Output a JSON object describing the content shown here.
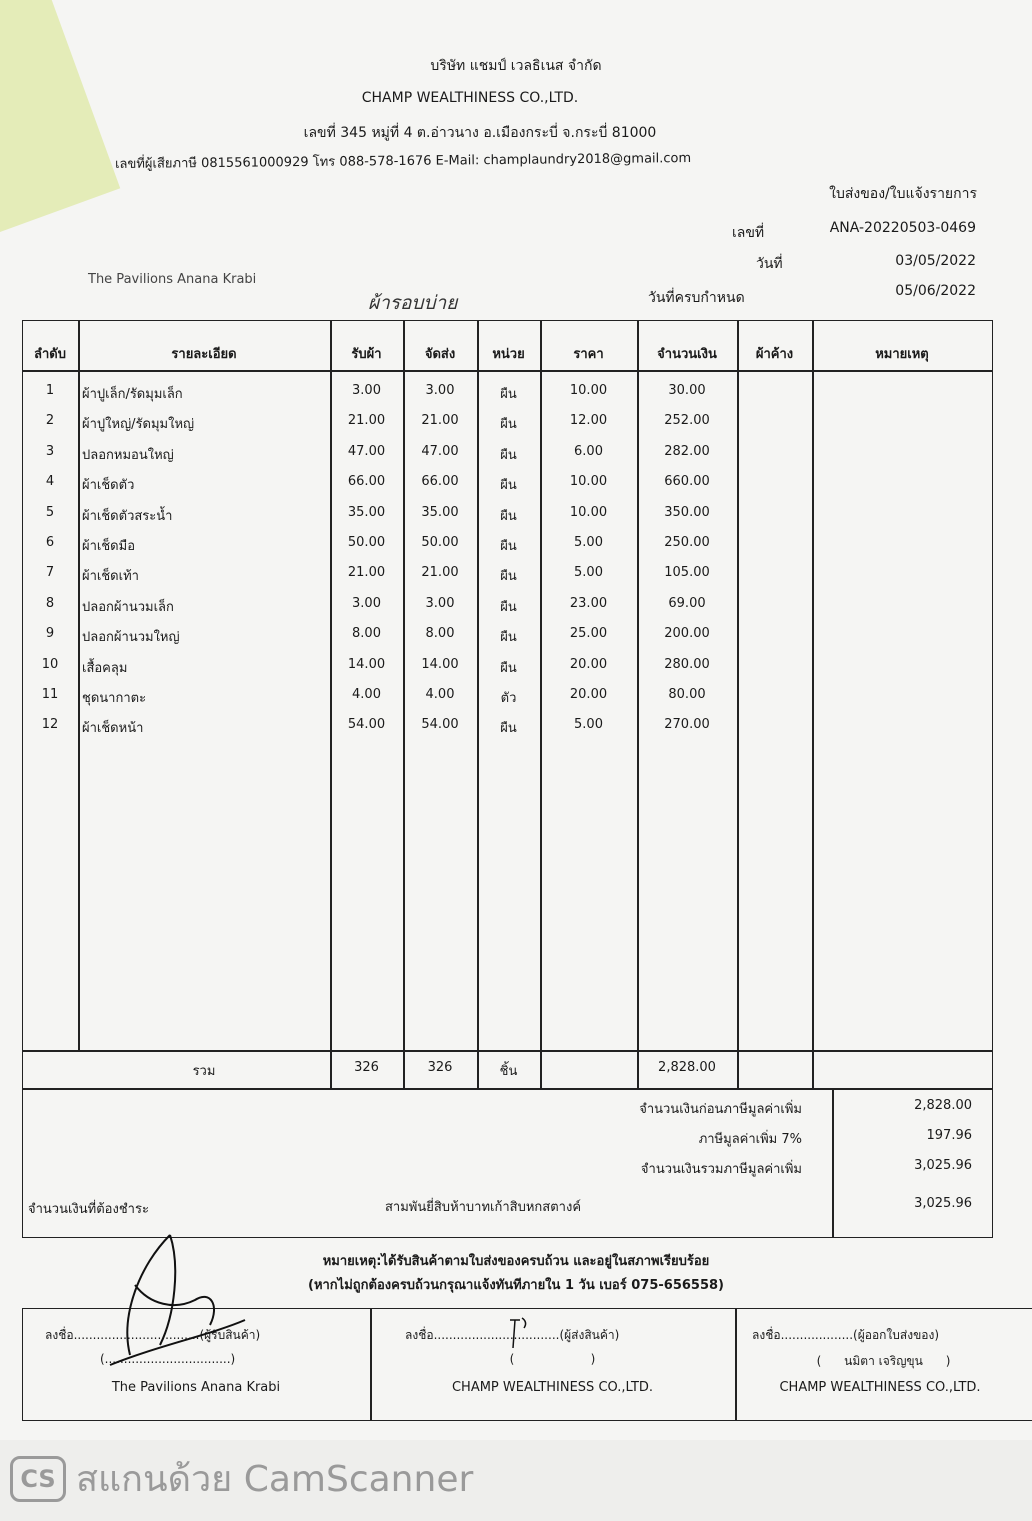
{
  "company": {
    "name_th": "บริษัท แชมป์ เวลธิเนส จำกัด",
    "name_en": "CHAMP WEALTHINESS CO.,LTD.",
    "address": "เลขที่ 345 หมู่ที่ 4 ต.อ่าวนาง อ.เมืองกระบี่ จ.กระบี่ 81000",
    "contact": "เลขที่ผู้เสียภาษี 0815561000929 โทร 088-578-1676 E-Mail: champlaundry2018@gmail.com"
  },
  "doc": {
    "type": "ใบส่งของ/ใบแจ้งรายการ",
    "no_label": "เลขที่",
    "no": "ANA-20220503-0469",
    "date_label": "วันที่",
    "date": "03/05/2022",
    "due_label": "วันที่ครบกำหนด",
    "due": "05/06/2022",
    "customer": "The Pavilions Anana Krabi",
    "handwritten": "ผ้ารอบบ่าย"
  },
  "table": {
    "headers": [
      "ลำดับ",
      "รายละเอียด",
      "รับผ้า",
      "จัดส่ง",
      "หน่วย",
      "ราคา",
      "จำนวนเงิน",
      "ผ้าค้าง",
      "หมายเหตุ"
    ],
    "rows": [
      [
        "1",
        "ผ้าปูเล็ก/รัดมุมเล็ก",
        "3.00",
        "3.00",
        "ผืน",
        "10.00",
        "30.00"
      ],
      [
        "2",
        "ผ้าปูใหญ่/รัดมุมใหญ่",
        "21.00",
        "21.00",
        "ผืน",
        "12.00",
        "252.00"
      ],
      [
        "3",
        "ปลอกหมอนใหญ่",
        "47.00",
        "47.00",
        "ผืน",
        "6.00",
        "282.00"
      ],
      [
        "4",
        "ผ้าเช็ดตัว",
        "66.00",
        "66.00",
        "ผืน",
        "10.00",
        "660.00"
      ],
      [
        "5",
        "ผ้าเช็ดตัวสระน้ำ",
        "35.00",
        "35.00",
        "ผืน",
        "10.00",
        "350.00"
      ],
      [
        "6",
        "ผ้าเช็ดมือ",
        "50.00",
        "50.00",
        "ผืน",
        "5.00",
        "250.00"
      ],
      [
        "7",
        "ผ้าเช็ดเท้า",
        "21.00",
        "21.00",
        "ผืน",
        "5.00",
        "105.00"
      ],
      [
        "8",
        "ปลอกผ้านวมเล็ก",
        "3.00",
        "3.00",
        "ผืน",
        "23.00",
        "69.00"
      ],
      [
        "9",
        "ปลอกผ้านวมใหญ่",
        "8.00",
        "8.00",
        "ผืน",
        "25.00",
        "200.00"
      ],
      [
        "10",
        "เสื้อคลุม",
        "14.00",
        "14.00",
        "ผืน",
        "20.00",
        "280.00"
      ],
      [
        "11",
        "ชุดนากาตะ",
        "4.00",
        "4.00",
        "ตัว",
        "20.00",
        "80.00"
      ],
      [
        "12",
        "ผ้าเช็ดหน้า",
        "54.00",
        "54.00",
        "ผืน",
        "5.00",
        "270.00"
      ]
    ],
    "total": {
      "label": "รวม",
      "received": "326",
      "delivered": "326",
      "unit": "ชิ้น",
      "amount": "2,828.00"
    }
  },
  "summary": {
    "pre_vat_label": "จำนวนเงินก่อนภาษีมูลค่าเพิ่ม",
    "pre_vat": "2,828.00",
    "vat_label": "ภาษีมูลค่าเพิ่ม 7%",
    "vat": "197.96",
    "total_label": "จำนวนเงินรวมภาษีมูลค่าเพิ่ม",
    "total": "3,025.96",
    "due_label": "จำนวนเงินที่ต้องชำระ",
    "due_words": "สามพันยี่สิบห้าบาทเก้าสิบหกสตางค์",
    "due": "3,025.96"
  },
  "note": {
    "line1": "หมายเหตุ:ได้รับสินค้าตามใบส่งของครบถ้วน และอยู่ในสภาพเรียบร้อย",
    "line2": "(หากไม่ถูกต้องครบถ้วนกรุณาแจ้งทันทีภายใน 1 วัน   เบอร์ 075-656558)"
  },
  "signatures": [
    {
      "line": "ลงชื่อ.................................(ผู้รับสินค้า)",
      "name": "(.................................)",
      "org": "The Pavilions Anana Krabi"
    },
    {
      "line": "ลงชื่อ.................................(ผู้ส่งสินค้า)",
      "name": "(                    )",
      "org": "CHAMP WEALTHINESS CO.,LTD."
    },
    {
      "line": "ลงชื่อ...................(ผู้ออกใบส่งของ)",
      "name": "(      นมิตา เจริญขุน      )",
      "org": "CHAMP WEALTHINESS CO.,LTD."
    }
  ],
  "watermark": {
    "logo": "CS",
    "text": "สแกนด้วย CamScanner"
  }
}
